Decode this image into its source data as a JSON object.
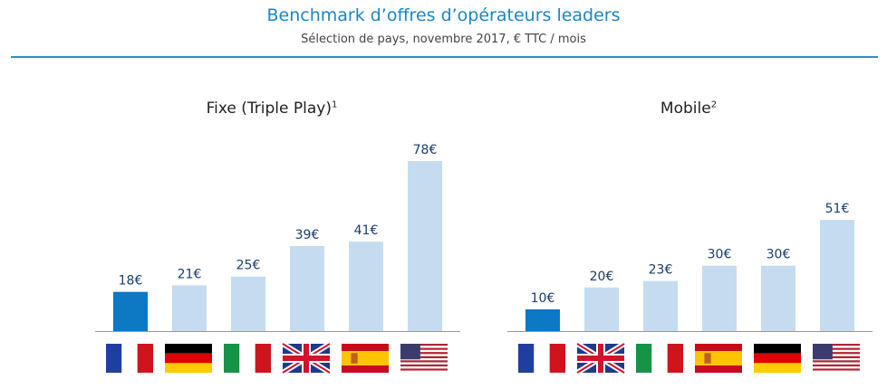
{
  "title": "Benchmark d’offres d’opérateurs leaders",
  "subtitle": "Sélection de pays, novembre 2017, € TTC / mois",
  "colors": {
    "highlight": "#0d78c3",
    "bar": "#c5dcf0",
    "accent": "#1a86c8"
  },
  "chart_data": [
    {
      "type": "bar",
      "title": "Fixe (Triple Play)",
      "title_sup": "1",
      "categories": [
        "France",
        "Germany",
        "Italy",
        "United Kingdom",
        "Spain",
        "United States"
      ],
      "flags": [
        "flag-france",
        "flag-germany",
        "flag-italy",
        "flag-uk",
        "flag-spain",
        "flag-usa"
      ],
      "values": [
        18,
        21,
        25,
        39,
        41,
        78
      ],
      "labels": [
        "18€",
        "21€",
        "25€",
        "39€",
        "41€",
        "78€"
      ],
      "highlight_index": 0,
      "ylim": [
        0,
        78
      ]
    },
    {
      "type": "bar",
      "title": "Mobile",
      "title_sup": "2",
      "categories": [
        "France",
        "United Kingdom",
        "Italy",
        "Spain",
        "Germany",
        "United States"
      ],
      "flags": [
        "flag-france",
        "flag-uk",
        "flag-italy",
        "flag-spain",
        "flag-germany",
        "flag-usa"
      ],
      "values": [
        10,
        20,
        23,
        30,
        30,
        51
      ],
      "labels": [
        "10€",
        "20€",
        "23€",
        "30€",
        "30€",
        "51€"
      ],
      "highlight_index": 0,
      "ylim": [
        0,
        78
      ]
    }
  ]
}
